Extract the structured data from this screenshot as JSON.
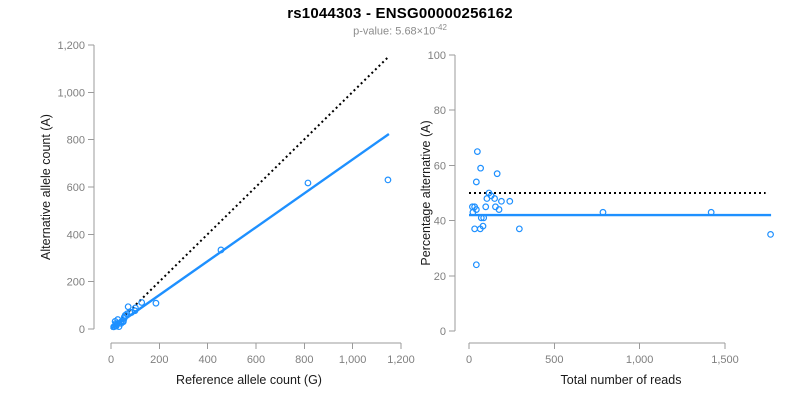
{
  "title": "rs1044303 - ENSG00000256162",
  "subtitle": {
    "prefix": "p-value: 5.68×10",
    "exponent": "-42"
  },
  "colors": {
    "accent_blue": "#1E90FF",
    "identity_line": "#000000",
    "axis_line": "#9b9b9b",
    "tick_label": "#7f7f7f",
    "title": "#000000",
    "subtitle": "#8c8c8c"
  },
  "chart_data": [
    {
      "type": "scatter",
      "xlabel": "Reference allele count (G)",
      "ylabel": "Alternative allele count (A)",
      "xlim": [
        0,
        1200
      ],
      "ylim": [
        0,
        1200
      ],
      "grid": false,
      "legend": "none",
      "xticks": [
        {
          "v": 0,
          "t": "0"
        },
        {
          "v": 200,
          "t": "200"
        },
        {
          "v": 400,
          "t": "400"
        },
        {
          "v": 600,
          "t": "600"
        },
        {
          "v": 800,
          "t": "800"
        },
        {
          "v": 1000,
          "t": "1,000"
        },
        {
          "v": 1200,
          "t": "1,200"
        }
      ],
      "yticks": [
        {
          "v": 0,
          "t": "0"
        },
        {
          "v": 200,
          "t": "200"
        },
        {
          "v": 400,
          "t": "400"
        },
        {
          "v": 600,
          "t": "600"
        },
        {
          "v": 800,
          "t": "800"
        },
        {
          "v": 1000,
          "t": "1,000"
        },
        {
          "v": 1200,
          "t": "1,200"
        }
      ],
      "point_color": "#1E90FF",
      "points": [
        [
          11,
          9
        ],
        [
          13,
          10
        ],
        [
          17,
          32
        ],
        [
          18,
          15
        ],
        [
          20,
          23
        ],
        [
          21,
          12
        ],
        [
          24,
          19
        ],
        [
          28,
          40
        ],
        [
          33,
          10
        ],
        [
          42,
          24
        ],
        [
          42,
          30
        ],
        [
          51,
          31
        ],
        [
          51,
          35
        ],
        [
          54,
          44
        ],
        [
          55,
          50
        ],
        [
          59,
          58
        ],
        [
          66,
          64
        ],
        [
          71,
          94
        ],
        [
          78,
          72
        ],
        [
          85,
          70
        ],
        [
          99,
          77
        ],
        [
          101,
          89
        ],
        [
          127,
          112
        ],
        [
          186,
          109
        ],
        [
          455,
          334
        ],
        [
          815,
          617
        ],
        [
          1146,
          630
        ]
      ],
      "lines": [
        {
          "name": "identity-line",
          "style": "dotted",
          "color": "#000000",
          "width": 2,
          "from": [
            0,
            0
          ],
          "to": [
            1148,
            1150
          ]
        },
        {
          "name": "fit-line",
          "style": "solid",
          "color": "#1E90FF",
          "width": 2.4,
          "from": [
            0,
            0
          ],
          "to": [
            1150,
            824
          ]
        }
      ]
    },
    {
      "type": "scatter",
      "xlabel": "Total number of reads",
      "ylabel": "Percentage alternative (A)",
      "xlim": [
        0,
        1800
      ],
      "ylim": [
        0,
        100
      ],
      "grid": false,
      "legend": "none",
      "xticks": [
        {
          "v": 0,
          "t": "0"
        },
        {
          "v": 500,
          "t": "500"
        },
        {
          "v": 1000,
          "t": "1,000"
        },
        {
          "v": 1500,
          "t": "1,500"
        }
      ],
      "yticks": [
        {
          "v": 0,
          "t": "0"
        },
        {
          "v": 20,
          "t": "20"
        },
        {
          "v": 40,
          "t": "40"
        },
        {
          "v": 60,
          "t": "60"
        },
        {
          "v": 80,
          "t": "80"
        },
        {
          "v": 100,
          "t": "100"
        }
      ],
      "point_color": "#1E90FF",
      "points": [
        [
          20,
          45
        ],
        [
          23,
          43
        ],
        [
          33,
          45
        ],
        [
          33,
          37
        ],
        [
          43,
          54
        ],
        [
          43,
          44
        ],
        [
          43,
          24
        ],
        [
          49,
          65
        ],
        [
          66,
          37
        ],
        [
          68,
          59
        ],
        [
          72,
          41
        ],
        [
          82,
          38
        ],
        [
          86,
          41
        ],
        [
          98,
          45
        ],
        [
          105,
          48
        ],
        [
          117,
          50
        ],
        [
          130,
          49
        ],
        [
          150,
          48
        ],
        [
          155,
          45
        ],
        [
          165,
          57
        ],
        [
          176,
          44
        ],
        [
          190,
          47
        ],
        [
          239,
          47
        ],
        [
          295,
          37
        ],
        [
          785,
          43
        ],
        [
          1419,
          43
        ],
        [
          1767,
          35
        ]
      ],
      "lines": [
        {
          "name": "fifty-percent-line",
          "style": "dotted",
          "color": "#000000",
          "width": 2,
          "from": [
            0,
            50
          ],
          "to": [
            1738,
            50
          ]
        },
        {
          "name": "mean-percentage-line",
          "style": "solid",
          "color": "#1E90FF",
          "width": 2.4,
          "from": [
            0,
            42
          ],
          "to": [
            1770,
            42
          ]
        }
      ]
    }
  ]
}
